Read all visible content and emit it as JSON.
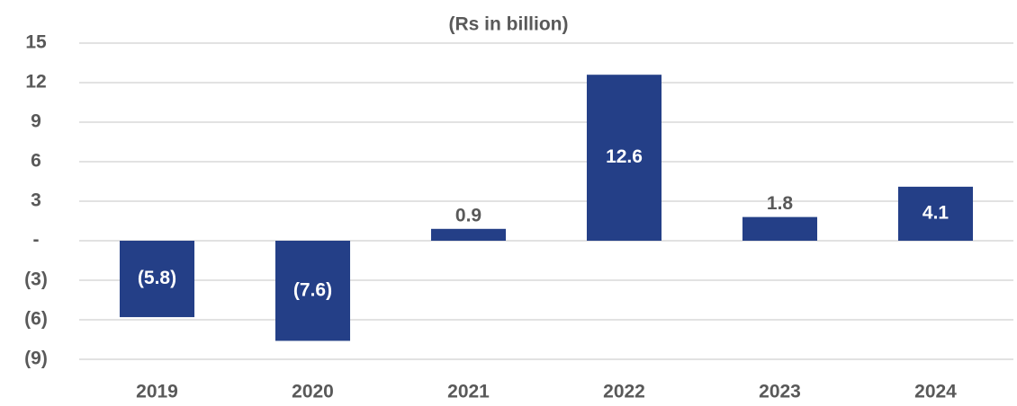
{
  "chart_data": {
    "type": "bar",
    "title": "(Rs in billion)",
    "categories": [
      "2019",
      "2020",
      "2021",
      "2022",
      "2023",
      "2024"
    ],
    "values": [
      -5.8,
      -7.6,
      0.9,
      12.6,
      1.8,
      4.1
    ],
    "value_labels": [
      "(5.8)",
      "(7.6)",
      "0.9",
      "12.6",
      "1.8",
      "4.1"
    ],
    "color": "#243f87",
    "ylim": [
      -9,
      15
    ],
    "yticks": [
      15,
      12,
      9,
      6,
      3,
      {
        "value": 0,
        "label": "-"
      },
      {
        "value": -3,
        "label": "(3)"
      },
      {
        "value": -6,
        "label": "(6)"
      },
      {
        "value": -9,
        "label": "(9)"
      }
    ],
    "grid": true
  }
}
